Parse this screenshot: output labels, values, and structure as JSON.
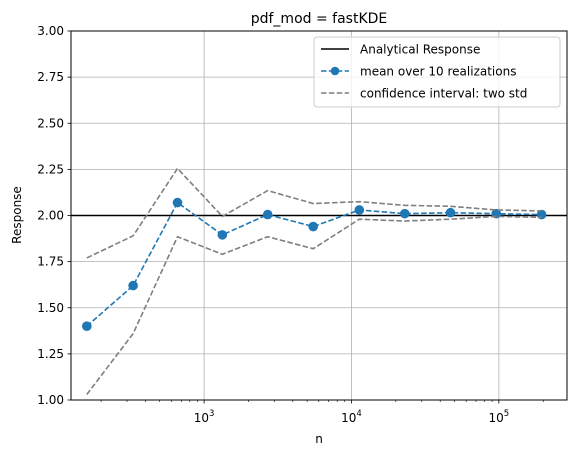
{
  "chart_data": {
    "type": "line",
    "title": "pdf_mod = fastKDE",
    "xlabel": "n",
    "ylabel": "Response",
    "xscale": "log",
    "xlim": [
      125,
      290000
    ],
    "ylim": [
      1.0,
      3.0
    ],
    "grid": true,
    "legend_position": "top-right",
    "x_ticks": [
      {
        "value": 1000,
        "base": "10",
        "exp": "3"
      },
      {
        "value": 10000,
        "base": "10",
        "exp": "4"
      },
      {
        "value": 100000,
        "base": "10",
        "exp": "5"
      }
    ],
    "y_ticks": [
      {
        "value": 1.0,
        "label": "1.00"
      },
      {
        "value": 1.25,
        "label": "1.25"
      },
      {
        "value": 1.5,
        "label": "1.50"
      },
      {
        "value": 1.75,
        "label": "1.75"
      },
      {
        "value": 2.0,
        "label": "2.00"
      },
      {
        "value": 2.25,
        "label": "2.25"
      },
      {
        "value": 2.5,
        "label": "2.50"
      },
      {
        "value": 2.75,
        "label": "2.75"
      },
      {
        "value": 3.0,
        "label": "3.00"
      }
    ],
    "x": [
      160,
      330,
      660,
      1330,
      2700,
      5500,
      11300,
      23000,
      47000,
      96000,
      195000
    ],
    "series": [
      {
        "name": "Analytical Response",
        "kind": "hline",
        "value": 2.0,
        "color": "#000000",
        "dash": "solid",
        "marker": "none"
      },
      {
        "name": "mean over 10 realizations",
        "kind": "line",
        "values": [
          1.4,
          1.62,
          2.07,
          1.895,
          2.005,
          1.94,
          2.03,
          2.01,
          2.015,
          2.01,
          2.005
        ],
        "color": "#1f77b4",
        "dash": "dashed",
        "marker": "circle"
      },
      {
        "name": "confidence interval: two std",
        "kind": "line",
        "values": [
          1.77,
          1.89,
          2.255,
          1.995,
          2.135,
          2.065,
          2.075,
          2.055,
          2.05,
          2.03,
          2.025
        ],
        "color": "#7f7f7f",
        "dash": "dashed",
        "marker": "none"
      },
      {
        "name": "confidence interval lower",
        "kind": "line",
        "values": [
          1.03,
          1.36,
          1.885,
          1.79,
          1.885,
          1.82,
          1.98,
          1.97,
          1.98,
          1.995,
          1.99
        ],
        "color": "#7f7f7f",
        "dash": "dashed",
        "marker": "none",
        "in_legend": false
      }
    ]
  }
}
